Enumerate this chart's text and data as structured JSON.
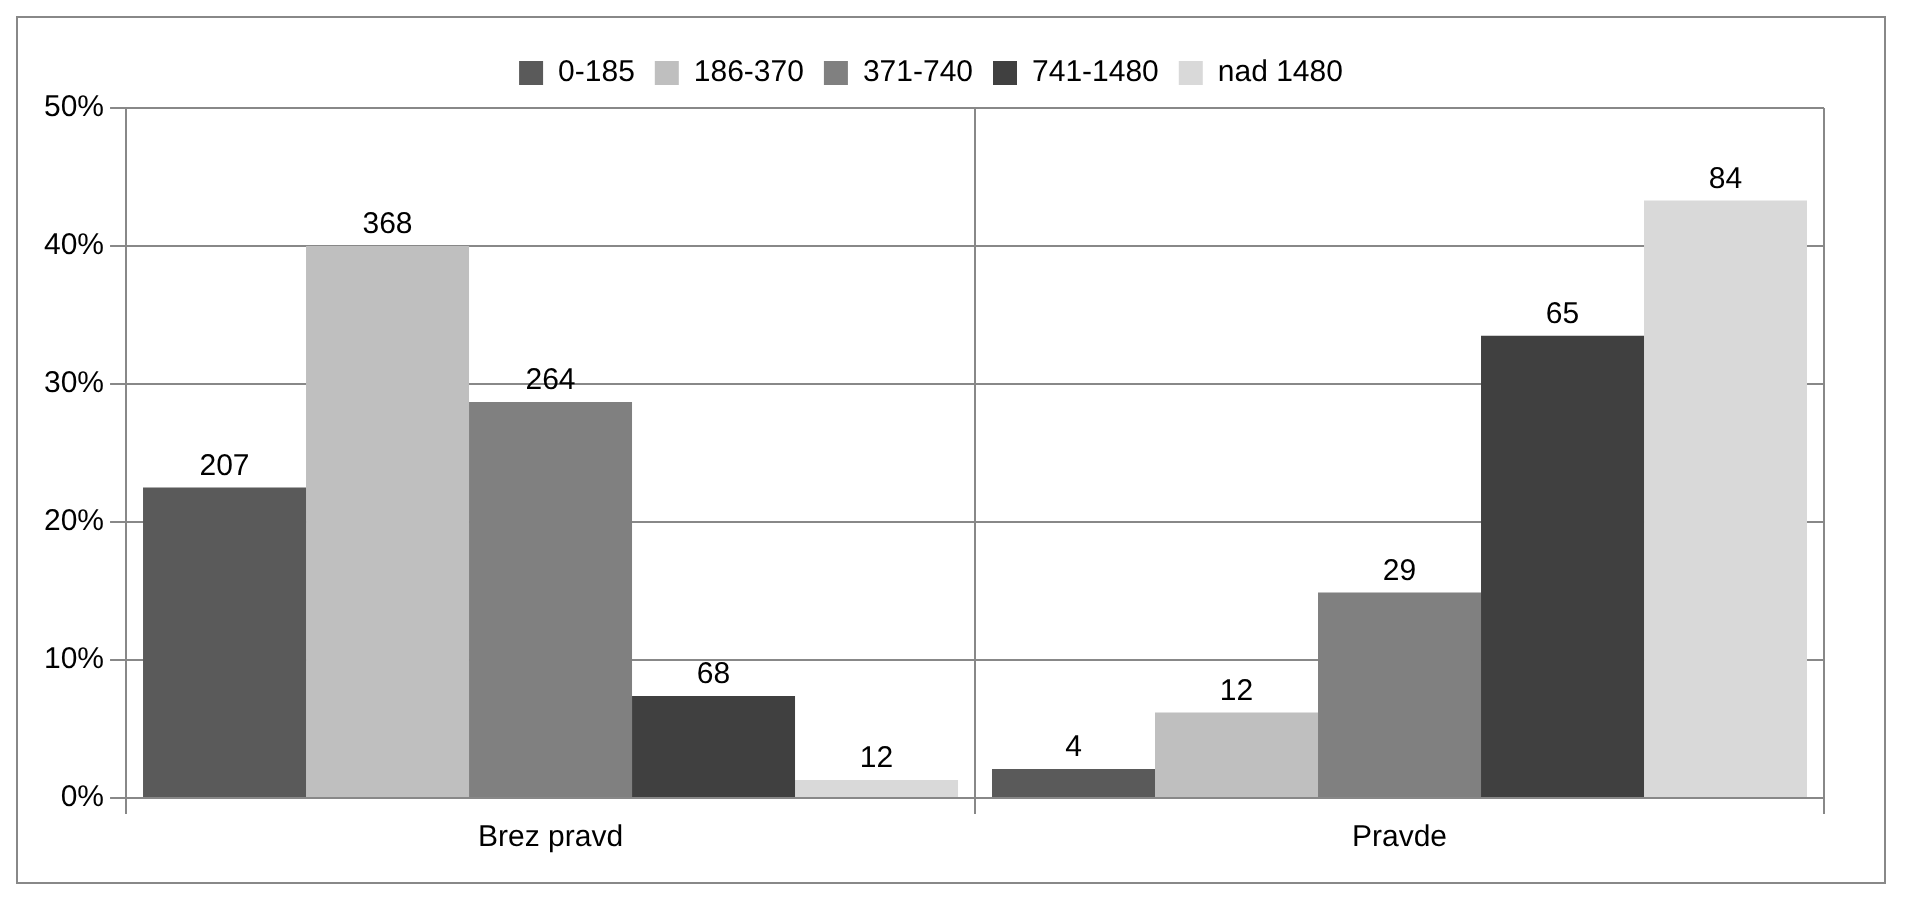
{
  "chart_data": {
    "type": "bar",
    "categories": [
      "Brez pravd",
      "Pravde"
    ],
    "series": [
      {
        "name": "0-185",
        "color": "#5a5a5a",
        "values": [
          22.5,
          2.1
        ]
      },
      {
        "name": "186-370",
        "color": "#bfbfbf",
        "values": [
          40.0,
          6.2
        ]
      },
      {
        "name": "371-740",
        "color": "#808080",
        "values": [
          28.7,
          14.9
        ]
      },
      {
        "name": "741-1480",
        "color": "#404040",
        "values": [
          7.4,
          33.5
        ]
      },
      {
        "name": "nad 1480",
        "color": "#d9d9d9",
        "values": [
          1.3,
          43.3
        ]
      }
    ],
    "annotations": [
      "207",
      "368",
      "264",
      "68",
      "12",
      "4",
      "12",
      "29",
      "65",
      "84"
    ],
    "ylim": [
      0,
      50
    ],
    "yticks": [
      {
        "value": 0,
        "label": "0%"
      },
      {
        "value": 10,
        "label": "10%"
      },
      {
        "value": 20,
        "label": "20%"
      },
      {
        "value": 30,
        "label": "30%"
      },
      {
        "value": 40,
        "label": "40%"
      },
      {
        "value": 50,
        "label": "50%"
      }
    ],
    "grid": "y",
    "legend": "top"
  }
}
